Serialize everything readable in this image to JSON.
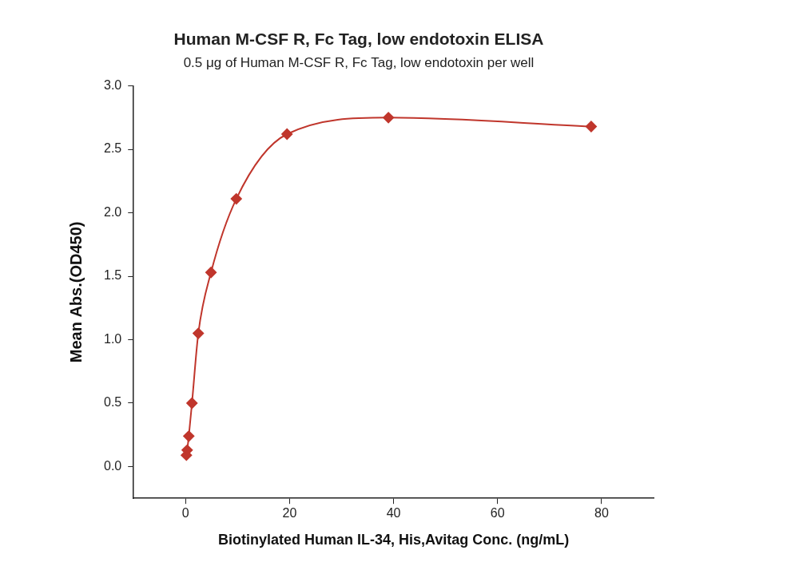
{
  "chart_data": {
    "type": "scatter",
    "title": "Human M-CSF R, Fc Tag, low endotoxin ELISA",
    "subtitle": "0.5 μg of Human M-CSF R, Fc Tag, low endotoxin per well",
    "x_label": "Biotinylated Human IL-34, His,Avitag Conc. (ng/mL)",
    "y_label": "Mean Abs.(OD450)",
    "x": [
      0.15,
      0.3,
      0.61,
      1.22,
      2.44,
      4.88,
      9.75,
      19.5,
      39,
      78
    ],
    "values": [
      0.09,
      0.13,
      0.24,
      0.5,
      1.05,
      1.53,
      2.11,
      2.62,
      2.75,
      2.68
    ],
    "color": "#c0362c",
    "marker": "diamond",
    "line_style": "solid",
    "xlim": [
      -10,
      90
    ],
    "xticks": [
      0,
      20,
      40,
      60,
      80
    ],
    "ylim": [
      -0.25,
      3.0
    ],
    "yticks": [
      {
        "value": 0,
        "label": "0.0"
      },
      0.5,
      {
        "value": 1,
        "label": "1.0"
      },
      1.5,
      {
        "value": 2,
        "label": "2.0"
      },
      2.5,
      {
        "value": 3,
        "label": "3.0"
      }
    ],
    "grid": false
  }
}
